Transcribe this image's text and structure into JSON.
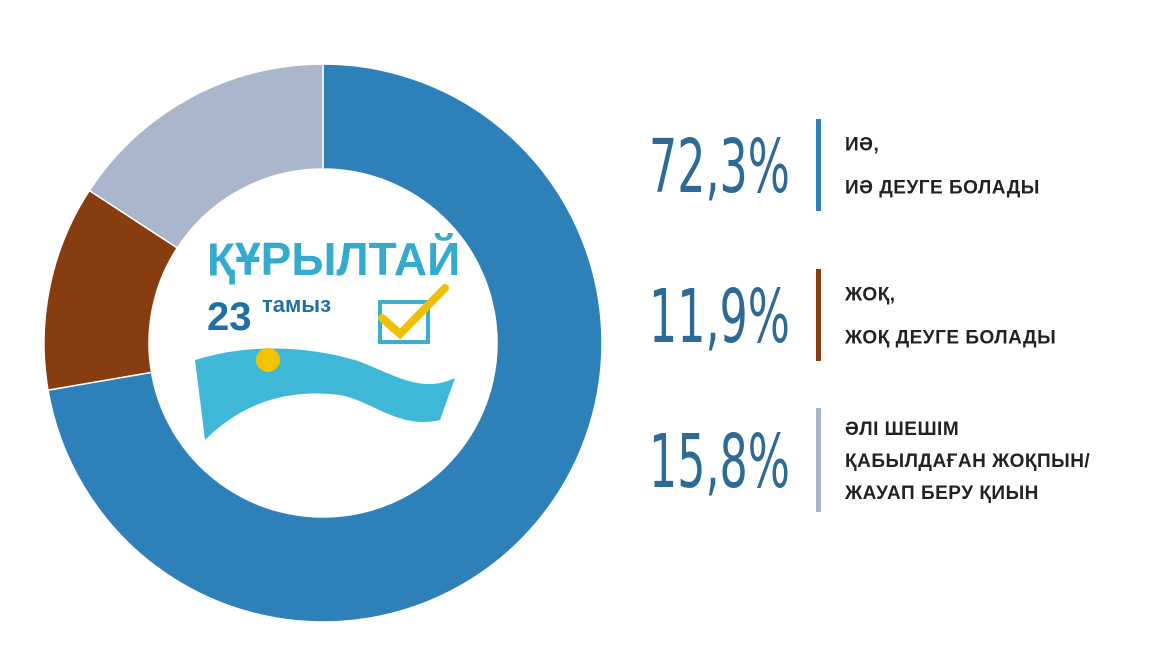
{
  "chart_data": {
    "type": "pie",
    "donut": true,
    "categories": [
      [
        "ИӘ,",
        "ИӘ ДЕУГЕ БОЛАДЫ"
      ],
      [
        "ЖОҚ,",
        "ЖОҚ ДЕУГЕ БОЛАДЫ"
      ],
      [
        "ӘЛІ ШЕШІМ",
        "ҚАБЫЛДАҒАН ЖОҚПЫН/",
        "ЖАУАП БЕРУ ҚИЫН"
      ]
    ],
    "values": [
      72.3,
      11.9,
      15.8
    ],
    "value_labels": [
      "72,3%",
      "11,9%",
      "15,8%"
    ],
    "colors": [
      "#2e80b9",
      "#873d0f",
      "#aab6cb"
    ]
  },
  "logo": {
    "title": "ҚҰРЫЛТАЙ",
    "number": "23",
    "word": "тамыз"
  }
}
